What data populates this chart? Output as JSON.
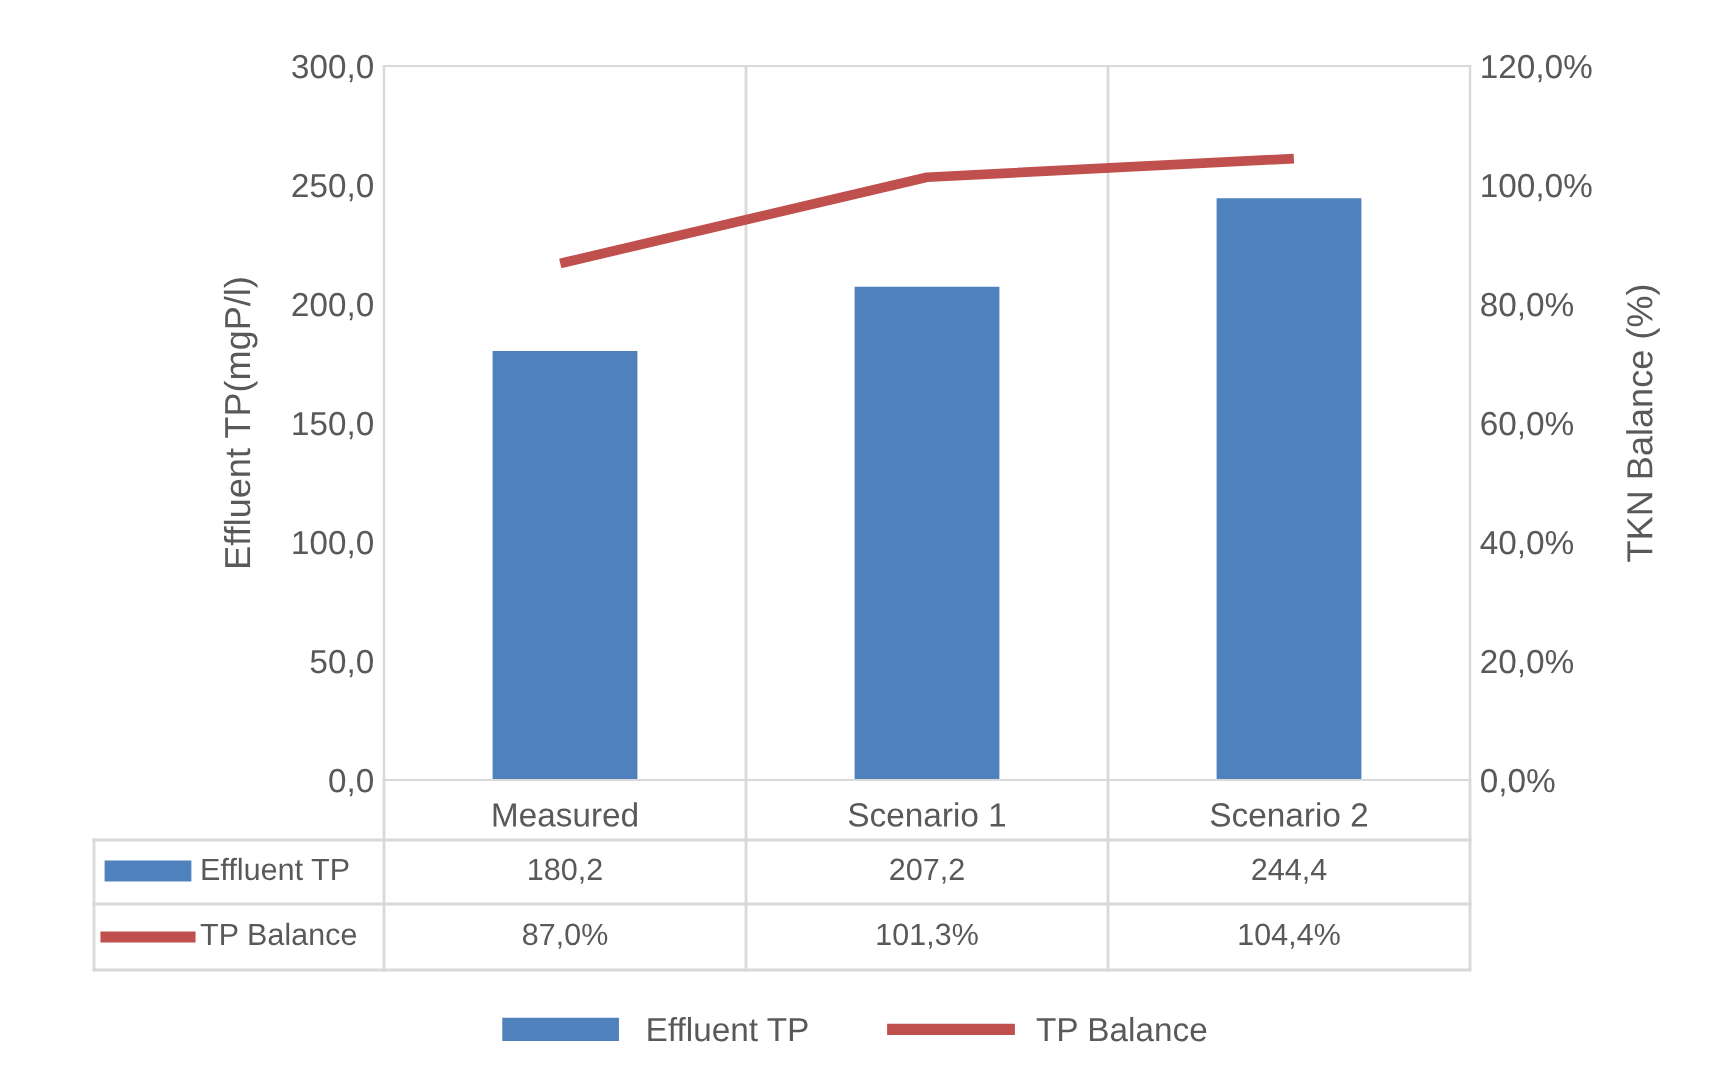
{
  "chart_data": {
    "type": "bar",
    "categories": [
      "Measured",
      "Scenario 1",
      "Scenario 2"
    ],
    "series": [
      {
        "name": "Effluent TP",
        "color": "#4f81bd",
        "values": [
          180.2,
          207.2,
          244.4
        ],
        "value_labels": [
          "180,2",
          "207,2",
          "244,4"
        ]
      },
      {
        "name": "TP Balance",
        "type": "line",
        "axis": "y2",
        "color": "#c0504d",
        "values": [
          87.0,
          101.3,
          104.4
        ],
        "value_labels": [
          "87,0%",
          "101,3%",
          "104,4%"
        ]
      }
    ],
    "ylabel": "Effluent TP(mgP/l)",
    "y2label": "TKN Balance (%)",
    "ylim": [
      0,
      300
    ],
    "yticks": [
      {
        "value": 0,
        "label": "0,0"
      },
      {
        "value": 50,
        "label": "50,0"
      },
      {
        "value": 100,
        "label": "100,0"
      },
      {
        "value": 150,
        "label": "150,0"
      },
      {
        "value": 200,
        "label": "200,0"
      },
      {
        "value": 250,
        "label": "250,0"
      },
      {
        "value": 300,
        "label": "300,0"
      }
    ],
    "y2lim": [
      0,
      120
    ],
    "y2ticks": [
      {
        "value": 0,
        "label": "0,0%"
      },
      {
        "value": 20,
        "label": "20,0%"
      },
      {
        "value": 40,
        "label": "40,0%"
      },
      {
        "value": 60,
        "label": "60,0%"
      },
      {
        "value": 80,
        "label": "80,0%"
      },
      {
        "value": 100,
        "label": "100,0%"
      },
      {
        "value": 120,
        "label": "120,0%"
      }
    ],
    "grid": "x",
    "legend": "bottom",
    "marker": "none",
    "line_style": "solid"
  }
}
